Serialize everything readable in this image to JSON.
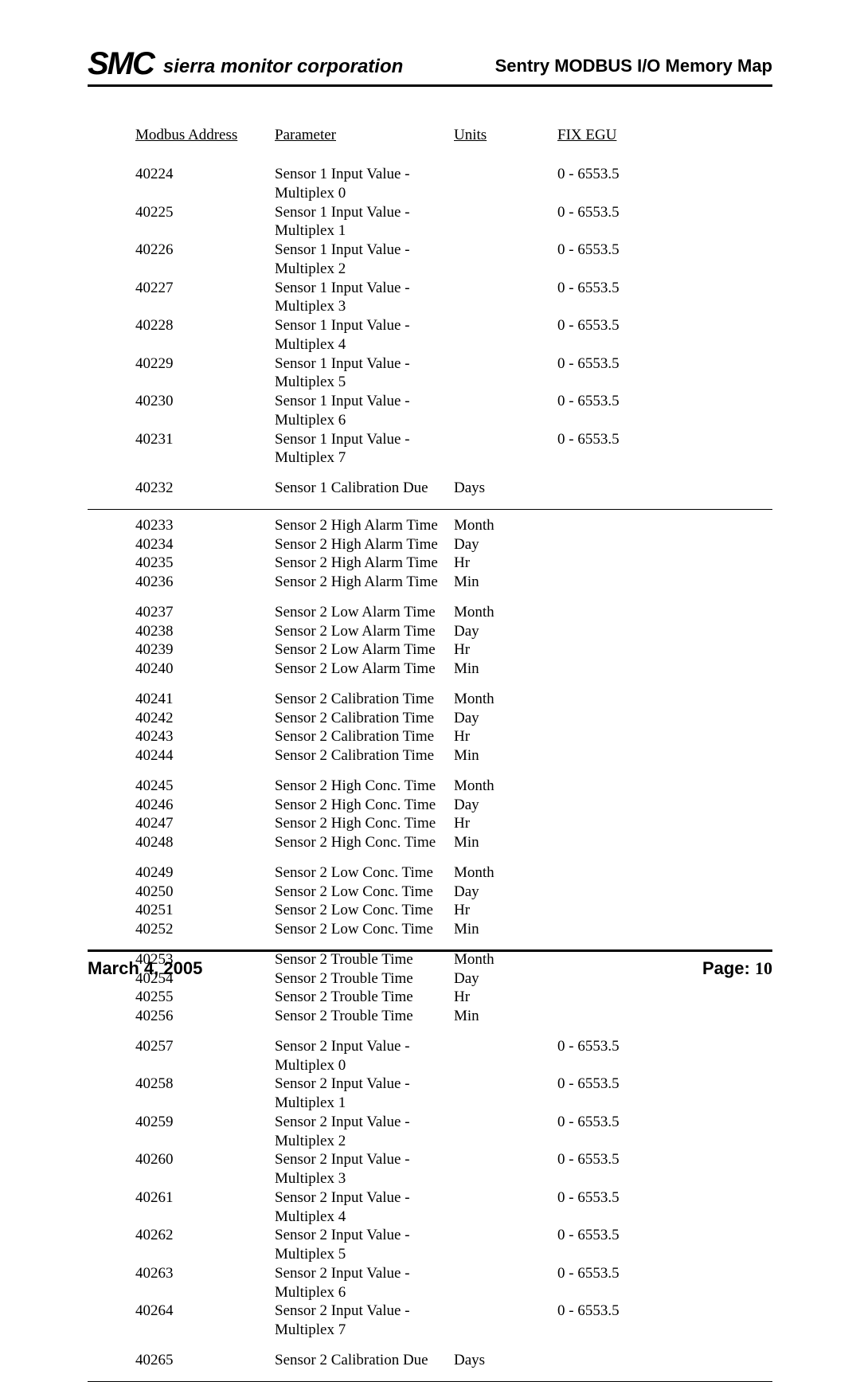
{
  "header": {
    "logo_text": "SMC",
    "company": "sierra monitor corporation",
    "doc_title": "Sentry MODBUS I/O Memory Map"
  },
  "columns": {
    "addr": "Modbus Address",
    "param": "Parameter",
    "units": "Units",
    "egu": "FIX EGU"
  },
  "groups": [
    {
      "sep_after": false,
      "rows": [
        {
          "addr": "40224",
          "param": "Sensor 1 Input Value - Multiplex 0",
          "units": "",
          "egu": "0 - 6553.5"
        },
        {
          "addr": "40225",
          "param": "Sensor 1 Input Value - Multiplex 1",
          "units": "",
          "egu": "0 - 6553.5"
        },
        {
          "addr": "40226",
          "param": "Sensor 1 Input Value - Multiplex 2",
          "units": "",
          "egu": "0 - 6553.5"
        },
        {
          "addr": "40227",
          "param": "Sensor 1 Input Value - Multiplex 3",
          "units": "",
          "egu": "0 - 6553.5"
        },
        {
          "addr": "40228",
          "param": "Sensor 1 Input Value - Multiplex 4",
          "units": "",
          "egu": "0 - 6553.5"
        },
        {
          "addr": "40229",
          "param": "Sensor 1 Input Value - Multiplex 5",
          "units": "",
          "egu": "0 - 6553.5"
        },
        {
          "addr": "40230",
          "param": "Sensor 1 Input Value - Multiplex 6",
          "units": "",
          "egu": "0 - 6553.5"
        },
        {
          "addr": "40231",
          "param": "Sensor 1 Input Value - Multiplex 7",
          "units": "",
          "egu": "0 - 6553.5"
        }
      ]
    },
    {
      "sep_after": true,
      "rows": [
        {
          "addr": "40232",
          "param": "Sensor 1 Calibration Due",
          "units": "Days",
          "egu": ""
        }
      ]
    },
    {
      "sep_after": false,
      "rows": [
        {
          "addr": "40233",
          "param": "Sensor 2 High Alarm Time",
          "units": "Month",
          "egu": ""
        },
        {
          "addr": "40234",
          "param": "Sensor 2 High Alarm Time",
          "units": "Day",
          "egu": ""
        },
        {
          "addr": "40235",
          "param": "Sensor 2 High Alarm Time",
          "units": "Hr",
          "egu": ""
        },
        {
          "addr": "40236",
          "param": "Sensor 2 High Alarm Time",
          "units": "Min",
          "egu": ""
        }
      ]
    },
    {
      "sep_after": false,
      "rows": [
        {
          "addr": "40237",
          "param": "Sensor 2 Low Alarm Time",
          "units": "Month",
          "egu": ""
        },
        {
          "addr": "40238",
          "param": "Sensor 2 Low Alarm Time",
          "units": "Day",
          "egu": ""
        },
        {
          "addr": "40239",
          "param": "Sensor 2 Low Alarm Time",
          "units": "Hr",
          "egu": ""
        },
        {
          "addr": "40240",
          "param": "Sensor 2 Low Alarm Time",
          "units": "Min",
          "egu": ""
        }
      ]
    },
    {
      "sep_after": false,
      "rows": [
        {
          "addr": "40241",
          "param": "Sensor 2 Calibration Time",
          "units": "Month",
          "egu": ""
        },
        {
          "addr": "40242",
          "param": "Sensor 2 Calibration Time",
          "units": "Day",
          "egu": ""
        },
        {
          "addr": "40243",
          "param": "Sensor 2 Calibration Time",
          "units": "Hr",
          "egu": ""
        },
        {
          "addr": "40244",
          "param": "Sensor 2 Calibration Time",
          "units": "Min",
          "egu": ""
        }
      ]
    },
    {
      "sep_after": false,
      "rows": [
        {
          "addr": "40245",
          "param": "Sensor 2 High Conc. Time",
          "units": "Month",
          "egu": ""
        },
        {
          "addr": "40246",
          "param": "Sensor 2 High Conc. Time",
          "units": "Day",
          "egu": ""
        },
        {
          "addr": "40247",
          "param": "Sensor 2 High Conc. Time",
          "units": "Hr",
          "egu": ""
        },
        {
          "addr": "40248",
          "param": "Sensor 2 High Conc. Time",
          "units": "Min",
          "egu": ""
        }
      ]
    },
    {
      "sep_after": false,
      "rows": [
        {
          "addr": "40249",
          "param": "Sensor 2 Low Conc. Time",
          "units": "Month",
          "egu": ""
        },
        {
          "addr": "40250",
          "param": "Sensor 2 Low Conc. Time",
          "units": "Day",
          "egu": ""
        },
        {
          "addr": "40251",
          "param": "Sensor 2 Low Conc. Time",
          "units": "Hr",
          "egu": ""
        },
        {
          "addr": "40252",
          "param": "Sensor 2 Low Conc. Time",
          "units": "Min",
          "egu": ""
        }
      ]
    },
    {
      "sep_after": false,
      "rows": [
        {
          "addr": "40253",
          "param": "Sensor 2 Trouble Time",
          "units": "Month",
          "egu": ""
        },
        {
          "addr": "40254",
          "param": "Sensor 2 Trouble Time",
          "units": "Day",
          "egu": ""
        },
        {
          "addr": "40255",
          "param": "Sensor 2 Trouble Time",
          "units": "Hr",
          "egu": ""
        },
        {
          "addr": "40256",
          "param": "Sensor 2 Trouble Time",
          "units": "Min",
          "egu": ""
        }
      ]
    },
    {
      "sep_after": false,
      "rows": [
        {
          "addr": "40257",
          "param": "Sensor 2 Input Value - Multiplex 0",
          "units": "",
          "egu": "0 - 6553.5"
        },
        {
          "addr": "40258",
          "param": "Sensor 2 Input Value - Multiplex 1",
          "units": "",
          "egu": "0 - 6553.5"
        },
        {
          "addr": "40259",
          "param": "Sensor 2 Input Value - Multiplex 2",
          "units": "",
          "egu": "0 - 6553.5"
        },
        {
          "addr": "40260",
          "param": "Sensor 2 Input Value - Multiplex 3",
          "units": "",
          "egu": "0 - 6553.5"
        },
        {
          "addr": "40261",
          "param": "Sensor 2 Input Value - Multiplex 4",
          "units": "",
          "egu": "0 - 6553.5"
        },
        {
          "addr": "40262",
          "param": "Sensor 2 Input Value - Multiplex 5",
          "units": "",
          "egu": "0 - 6553.5"
        },
        {
          "addr": "40263",
          "param": "Sensor 2 Input Value - Multiplex 6",
          "units": "",
          "egu": "0 - 6553.5"
        },
        {
          "addr": "40264",
          "param": "Sensor 2 Input Value - Multiplex 7",
          "units": "",
          "egu": "0 - 6553.5"
        }
      ]
    },
    {
      "sep_after": true,
      "rows": [
        {
          "addr": "40265",
          "param": "Sensor 2 Calibration Due",
          "units": "Days",
          "egu": ""
        }
      ]
    }
  ],
  "footer": {
    "date": "March 4, 2005",
    "page_label": "Page:",
    "page_num": "10"
  }
}
